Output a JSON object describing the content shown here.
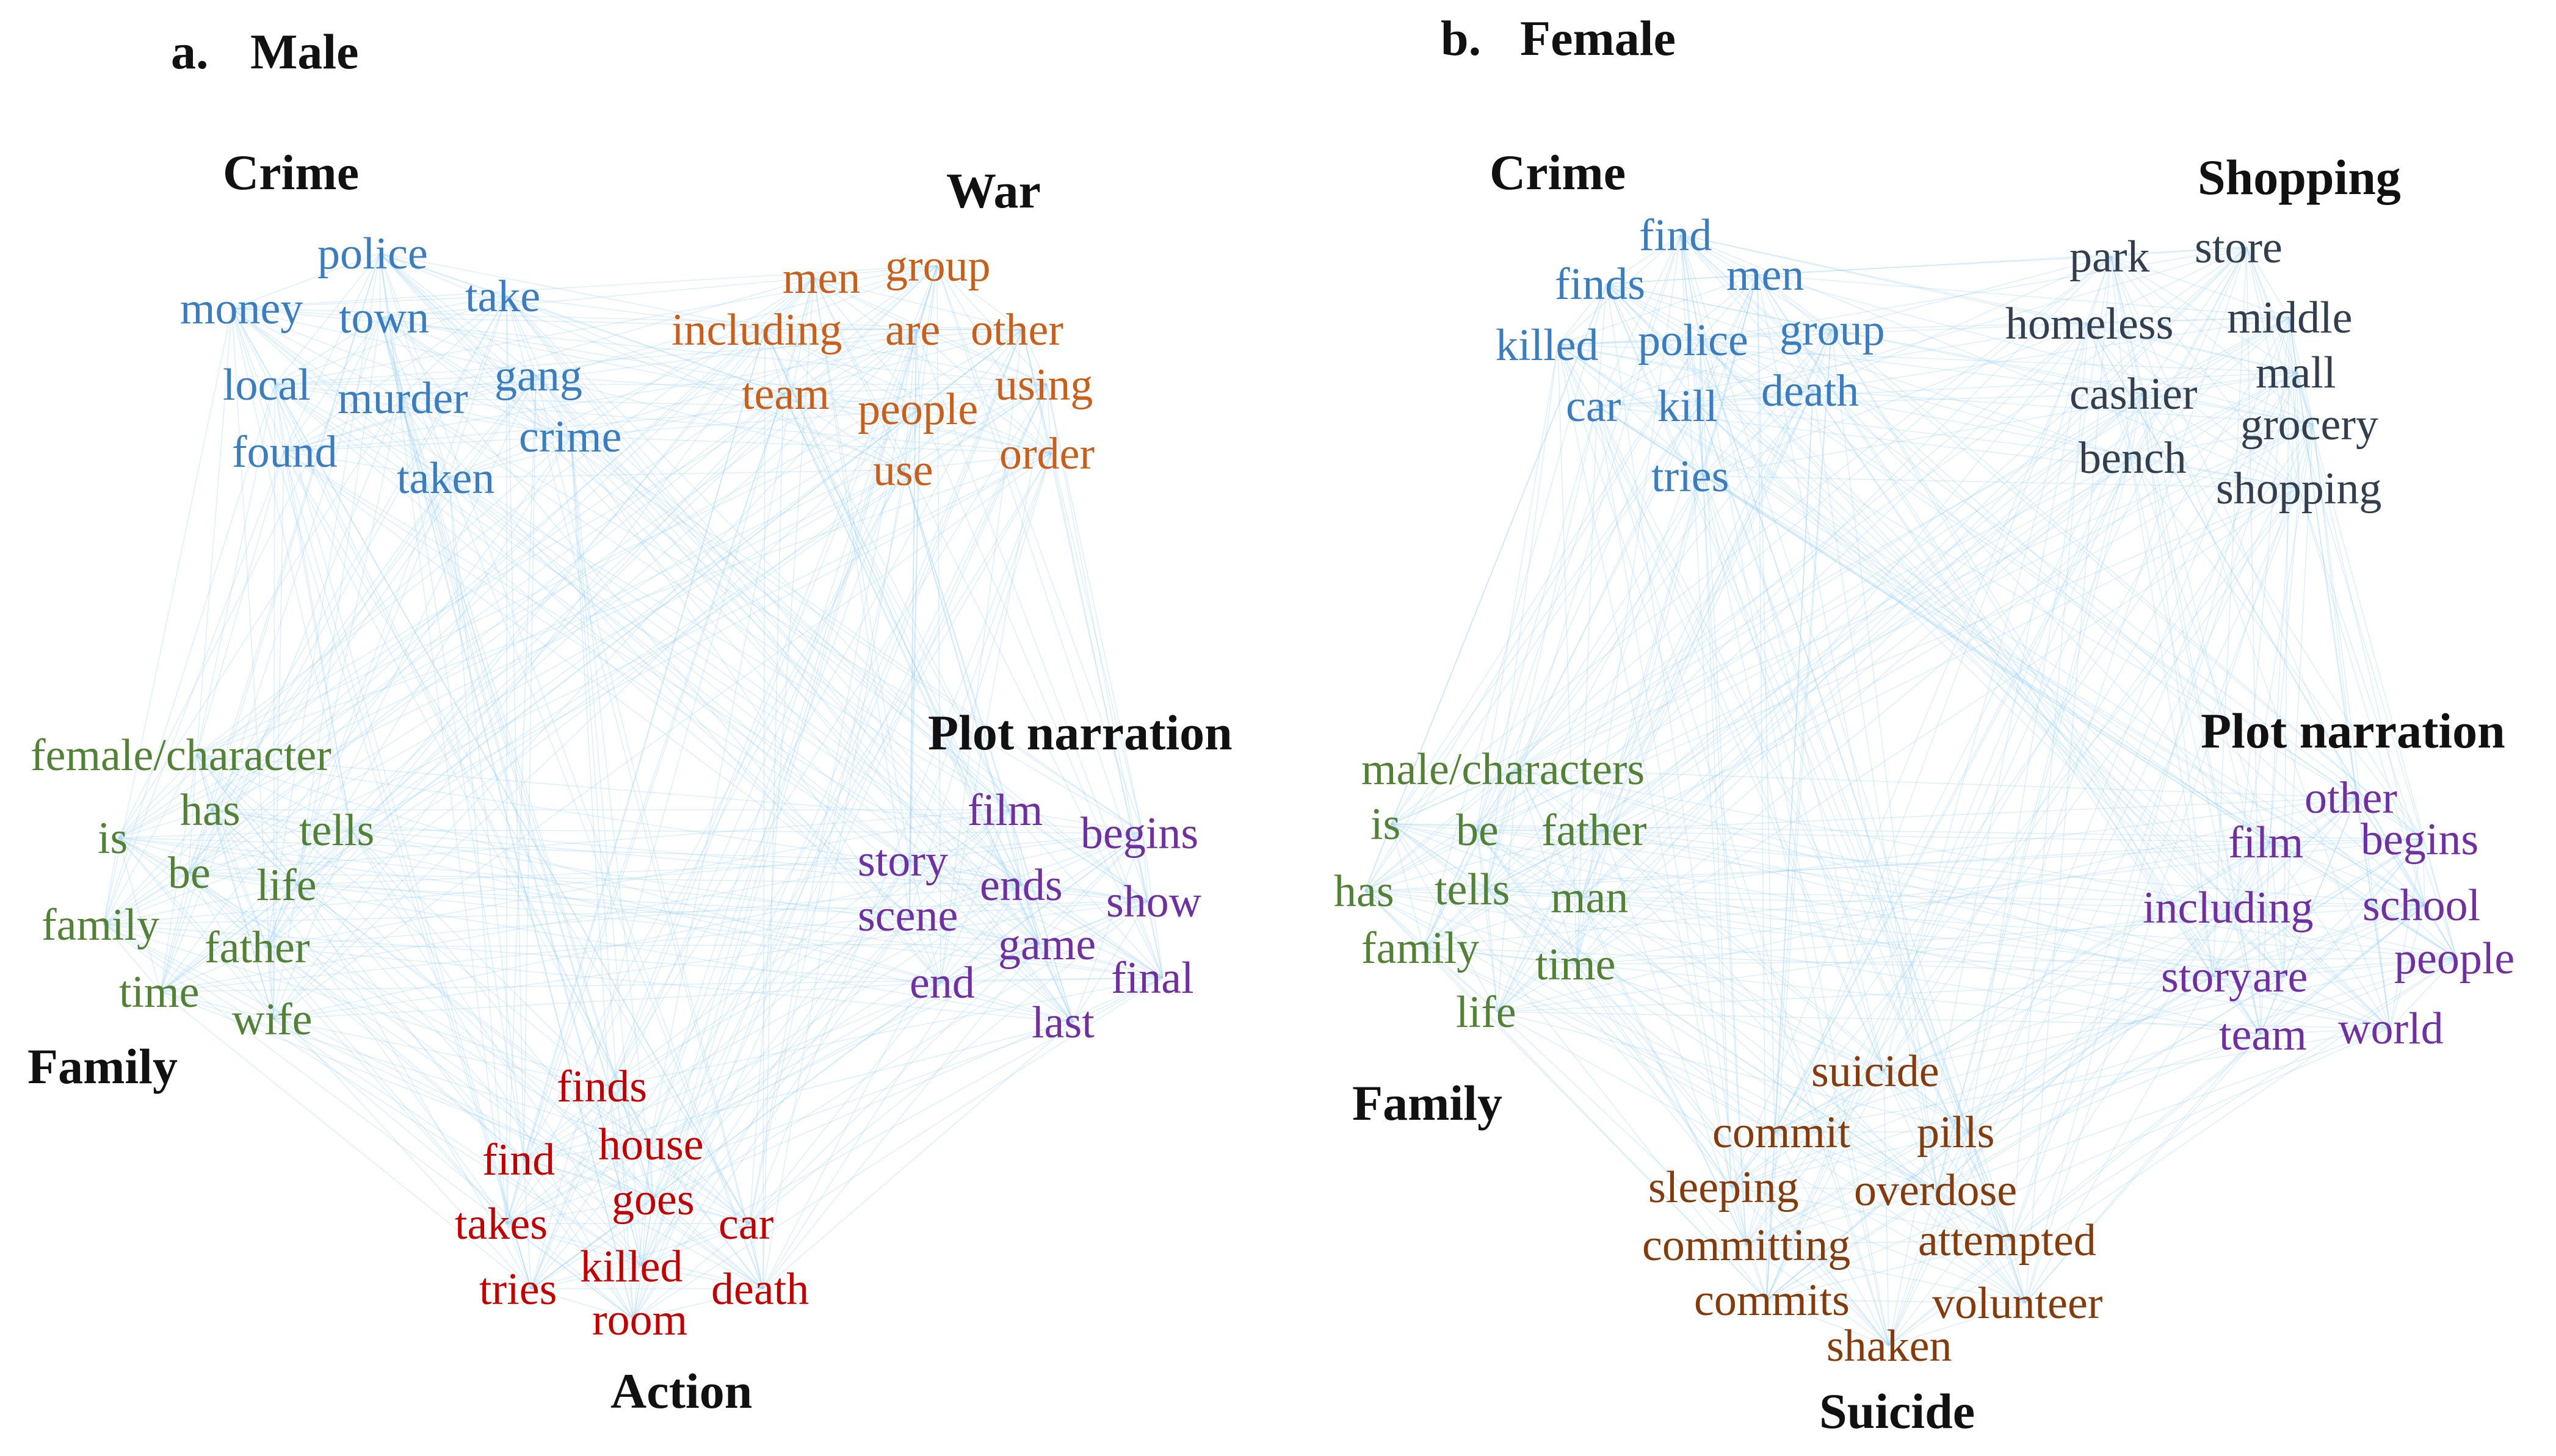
{
  "colors": {
    "edge": "#9ccff2",
    "title": "#111111",
    "crime": "#3b7dbf",
    "war": "#c8601c",
    "plot": "#7030a0",
    "family": "#538135",
    "action": "#c00000",
    "shopping": "#333f4f",
    "suicide": "#843c0c"
  },
  "panels": [
    {
      "id": "a",
      "label": "a.",
      "title": "Male",
      "clusters": [
        {
          "id": "crime",
          "title": "Crime",
          "color_key": "crime",
          "words": [
            "police",
            "money",
            "town",
            "take",
            "local",
            "murder",
            "gang",
            "found",
            "crime",
            "taken"
          ]
        },
        {
          "id": "war",
          "title": "War",
          "color_key": "war",
          "words": [
            "men",
            "group",
            "including",
            "are",
            "other",
            "team",
            "people",
            "using",
            "use",
            "order"
          ]
        },
        {
          "id": "family",
          "title": "Family",
          "color_key": "family",
          "words": [
            "female/character",
            "has",
            "is",
            "tells",
            "be",
            "life",
            "family",
            "father",
            "time",
            "wife"
          ]
        },
        {
          "id": "plot",
          "title": "Plot narration",
          "color_key": "plot",
          "words": [
            "film",
            "begins",
            "story",
            "ends",
            "show",
            "scene",
            "game",
            "end",
            "final",
            "last"
          ]
        },
        {
          "id": "action",
          "title": "Action",
          "color_key": "action",
          "words": [
            "finds",
            "house",
            "find",
            "goes",
            "car",
            "takes",
            "killed",
            "tries",
            "death",
            "room"
          ]
        }
      ]
    },
    {
      "id": "b",
      "label": "b.",
      "title": "Female",
      "clusters": [
        {
          "id": "crime",
          "title": "Crime",
          "color_key": "crime",
          "words": [
            "find",
            "finds",
            "men",
            "killed",
            "police",
            "group",
            "car",
            "kill",
            "death",
            "tries"
          ]
        },
        {
          "id": "shopping",
          "title": "Shopping",
          "color_key": "shopping",
          "words": [
            "park",
            "store",
            "homeless",
            "middle",
            "cashier",
            "mall",
            "grocery",
            "bench",
            "shopping"
          ]
        },
        {
          "id": "family",
          "title": "Family",
          "color_key": "family",
          "words": [
            "male/characters",
            "is",
            "be",
            "father",
            "has",
            "tells",
            "man",
            "family",
            "time",
            "life"
          ]
        },
        {
          "id": "plot",
          "title": "Plot narration",
          "color_key": "plot",
          "words": [
            "other",
            "film",
            "begins",
            "including",
            "school",
            "story",
            "are",
            "people",
            "team",
            "world"
          ]
        },
        {
          "id": "suicide",
          "title": "Suicide",
          "color_key": "suicide",
          "words": [
            "suicide",
            "commit",
            "pills",
            "sleeping",
            "overdose",
            "committing",
            "attempted",
            "commits",
            "volunteer",
            "shaken"
          ]
        }
      ]
    }
  ]
}
